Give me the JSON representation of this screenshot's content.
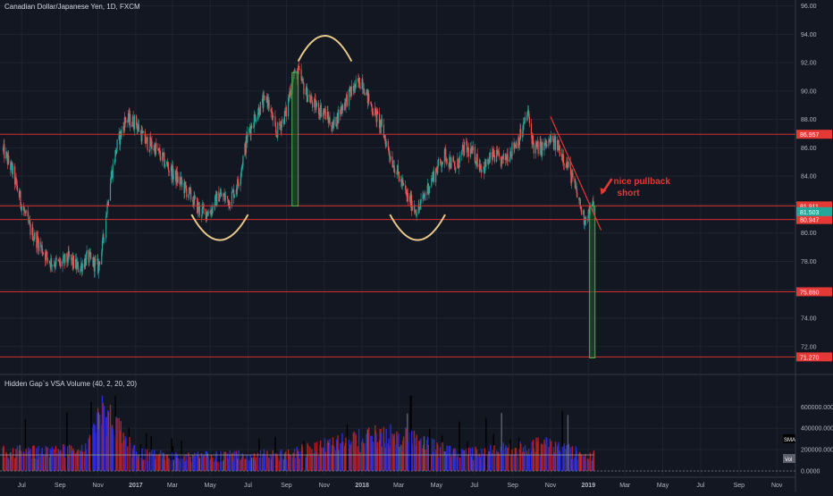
{
  "header": {
    "symbol_title": "Canadian Dollar/Japanese Yen, 1D, FXCM"
  },
  "indicator": {
    "title": "Hidden Gap`s VSA Volume (40, 2, 20, 20)"
  },
  "colors": {
    "background": "#131722",
    "grid": "#1f2430",
    "axis_text": "#b2b5be",
    "up_candle": "#26a69a",
    "down_candle": "#ef5350",
    "level_line": "#d32f2f",
    "level_box": "#e53935",
    "current_price_box": "#26a69a",
    "vol_blue": "#2b2bd6",
    "vol_red": "#b22222",
    "vol_gray": "#5d606b",
    "pattern_arc": "#e9c98a",
    "target_box": "#1b5e20",
    "target_border": "#4caf50",
    "annotation": "#e53935"
  },
  "chart_data": [
    {
      "type": "candlestick",
      "title": "Canadian Dollar/Japanese Yen, 1D, FXCM",
      "x_ticks": [
        "Jul",
        "Sep",
        "Nov",
        "2017",
        "Mar",
        "May",
        "Jul",
        "Sep",
        "Nov",
        "2018",
        "Mar",
        "May",
        "Jul",
        "Sep",
        "Nov",
        "2019",
        "Mar",
        "May",
        "Jul",
        "Sep",
        "Nov"
      ],
      "y_ticks": [
        72.0,
        74.0,
        76.0,
        78.0,
        80.0,
        82.0,
        84.0,
        86.0,
        88.0,
        90.0,
        92.0,
        94.0,
        96.0
      ],
      "ylim": [
        70.6,
        96.1
      ],
      "grid": true,
      "price_path": {
        "x": [
          "2016-06-01",
          "2016-06-15",
          "2016-07-01",
          "2016-07-15",
          "2016-08-01",
          "2016-08-15",
          "2016-09-01",
          "2016-09-15",
          "2016-10-01",
          "2016-10-15",
          "2016-11-01",
          "2016-11-08",
          "2016-11-20",
          "2016-12-01",
          "2016-12-15",
          "2017-01-01",
          "2017-01-15",
          "2017-02-01",
          "2017-03-01",
          "2017-03-15",
          "2017-04-01",
          "2017-04-15",
          "2017-05-01",
          "2017-05-15",
          "2017-06-01",
          "2017-06-15",
          "2017-07-01",
          "2017-07-15",
          "2017-08-01",
          "2017-08-15",
          "2017-09-01",
          "2017-09-10",
          "2017-09-20",
          "2017-10-01",
          "2017-10-15",
          "2017-11-01",
          "2017-11-15",
          "2017-12-01",
          "2017-12-15",
          "2018-01-01",
          "2018-01-10",
          "2018-02-01",
          "2018-02-15",
          "2018-03-01",
          "2018-03-15",
          "2018-04-01",
          "2018-04-15",
          "2018-05-01",
          "2018-05-15",
          "2018-06-01",
          "2018-06-15",
          "2018-07-01",
          "2018-07-15",
          "2018-08-01",
          "2018-08-15",
          "2018-09-01",
          "2018-09-15",
          "2018-09-25",
          "2018-10-05",
          "2018-10-20",
          "2018-11-01",
          "2018-11-15",
          "2018-12-01",
          "2018-12-15",
          "2018-12-25",
          "2019-01-03",
          "2019-01-10"
        ],
        "close": [
          85.8,
          84.5,
          82.0,
          80.2,
          79.0,
          78.0,
          77.8,
          78.2,
          77.5,
          78.3,
          77.6,
          79.0,
          83.5,
          86.0,
          88.0,
          87.8,
          86.5,
          86.0,
          84.2,
          83.5,
          82.5,
          81.5,
          81.5,
          82.7,
          82.3,
          83.5,
          87.0,
          88.5,
          89.5,
          87.0,
          88.5,
          91.0,
          91.3,
          90.0,
          89.0,
          88.5,
          87.5,
          89.0,
          90.0,
          90.8,
          89.5,
          87.5,
          85.5,
          84.0,
          82.5,
          81.5,
          83.0,
          84.5,
          85.5,
          84.5,
          86.0,
          85.5,
          84.5,
          85.5,
          85.0,
          86.0,
          87.0,
          88.5,
          86.0,
          86.0,
          86.5,
          86.0,
          84.5,
          82.5,
          81.0,
          81.5,
          82.0
        ]
      },
      "horizontal_levels": [
        86.957,
        81.911,
        80.947,
        75.86,
        71.27
      ],
      "current_price_label": "81.503",
      "current_price": 81.503,
      "annotation_text": [
        "nice pullback",
        "short"
      ],
      "annotations": {
        "head_and_shoulders_arcs": [
          {
            "from": "2017-04-01",
            "to": "2017-07-01",
            "level": 81.3,
            "depth": 79.5
          },
          {
            "from": "2017-09-20",
            "to": "2017-12-15",
            "level": 92.1,
            "depth": 93.9
          },
          {
            "from": "2018-02-15",
            "to": "2018-05-15",
            "level": 81.3,
            "depth": 79.5
          }
        ],
        "measured_move_boxes": [
          {
            "x_from": "2017-09-10",
            "x_to": "2017-09-20",
            "y_from": 81.9,
            "y_to": 91.3
          },
          {
            "x_from": "2019-01-03",
            "x_to": "2019-01-10",
            "y_from": 71.2,
            "y_to": 81.9
          }
        ],
        "trendline": {
          "x_from": "2018-11-01",
          "x_to": "2019-01-10",
          "y_from": 88.2,
          "y_to": 80.2
        }
      }
    },
    {
      "type": "bar",
      "title": "Hidden Gap`s VSA Volume (40, 2, 20, 20)",
      "y_ticks": [
        "600000.0000",
        "400000.0000",
        "200000.0000",
        "0.0000"
      ],
      "ylim": [
        0,
        720000
      ],
      "series_labels": [
        "SMA",
        "Vol"
      ],
      "volume_profile": {
        "x": [
          "2016-06-01",
          "2016-10-15",
          "2016-11-10",
          "2017-01-01",
          "2017-03-01",
          "2017-09-01",
          "2018-02-10",
          "2018-06-01",
          "2018-10-20",
          "2019-01-10"
        ],
        "approx_volume": [
          185000,
          200000,
          600000,
          170000,
          140000,
          160000,
          370000,
          170000,
          250000,
          150000
        ]
      },
      "sma_level": 150000
    }
  ]
}
